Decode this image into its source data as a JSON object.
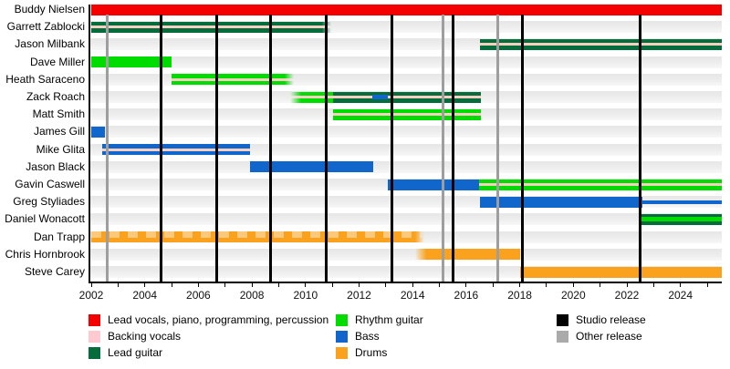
{
  "chart_data": {
    "type": "bar",
    "subtype": "band-membership-timeline",
    "grid": "row-bands",
    "x_axis": {
      "start": 2002,
      "end": 2025.55,
      "minor_tick_step": 1,
      "label_step": 2,
      "labels": [
        "2002",
        "2004",
        "2006",
        "2008",
        "2010",
        "2012",
        "2014",
        "2016",
        "2018",
        "2020",
        "2022",
        "2024"
      ]
    },
    "colors": {
      "lead_vocals": "#f40000",
      "backing_vocals": "#f6cfc0",
      "lead_guitar": "#056d3c",
      "rhythm_guitar": "#00dc00",
      "bass": "#1166cb",
      "drums": "#faa21e",
      "studio": "#000000",
      "other": "#9e9e9e"
    },
    "members": [
      {
        "name": "Buddy Nielsen",
        "segments": [
          {
            "role": "lead_vocals",
            "start": 2002,
            "end": 2025.55
          }
        ]
      },
      {
        "name": "Garrett Zablocki",
        "segments": [
          {
            "role": "lead_guitar",
            "start": 2002,
            "end": 2010.97,
            "stripe": "backing_vocals",
            "fade_right": true
          }
        ]
      },
      {
        "name": "Jason Milbank",
        "segments": [
          {
            "role": "lead_guitar",
            "start": 2016.52,
            "end": 2025.55,
            "stripe": "backing_vocals"
          }
        ]
      },
      {
        "name": "Dave Miller",
        "segments": [
          {
            "role": "rhythm_guitar",
            "start": 2002,
            "end": 2005.0
          }
        ]
      },
      {
        "name": "Heath Saraceno",
        "segments": [
          {
            "role": "rhythm_guitar",
            "start": 2005.0,
            "end": 2009.56,
            "stripe": "backing_vocals",
            "fade_right": true
          }
        ]
      },
      {
        "name": "Zack Roach",
        "segments": [
          {
            "role": "rhythm_guitar",
            "start": 2009.43,
            "end": 2011.03,
            "stripe": "backing_vocals",
            "fade_left": true
          },
          {
            "role": "lead_guitar",
            "start": 2011.03,
            "end": 2016.55,
            "stripe": "backing_vocals",
            "stripe_overlays": [
              {
                "role": "bass",
                "start": 2012.49,
                "end": 2013.07
              }
            ]
          }
        ]
      },
      {
        "name": "Matt Smith",
        "segments": [
          {
            "role": "rhythm_guitar",
            "start": 2011.03,
            "end": 2016.55,
            "stripe": "backing_vocals"
          }
        ]
      },
      {
        "name": "James Gill",
        "segments": [
          {
            "role": "bass",
            "start": 2002,
            "end": 2002.51
          }
        ]
      },
      {
        "name": "Mike Glita",
        "segments": [
          {
            "role": "bass",
            "start": 2002.41,
            "end": 2007.93,
            "stripe": "backing_vocals"
          }
        ]
      },
      {
        "name": "Jason Black",
        "segments": [
          {
            "role": "bass",
            "start": 2007.93,
            "end": 2012.53
          }
        ]
      },
      {
        "name": "Gavin Caswell",
        "segments": [
          {
            "role": "bass",
            "start": 2013.07,
            "end": 2016.48
          },
          {
            "role": "rhythm_guitar",
            "start": 2016.48,
            "end": 2025.55,
            "stripe": "backing_vocals"
          }
        ]
      },
      {
        "name": "Greg Styliades",
        "segments": [
          {
            "role": "bass",
            "start": 2016.52,
            "end": 2022.58
          },
          {
            "role": "bass",
            "start": 2022.58,
            "end": 2025.55,
            "thin": true
          }
        ]
      },
      {
        "name": "Daniel Wonacott",
        "segments": [
          {
            "role": "lead_guitar",
            "start": 2022.51,
            "end": 2025.55,
            "stripe": "rhythm_guitar",
            "stripe_height": 5
          }
        ]
      },
      {
        "name": "Dan Trapp",
        "segments": [
          {
            "role": "drums",
            "start": 2002,
            "end": 2014.44,
            "pattern": "dashed_top",
            "fade_right": true
          }
        ]
      },
      {
        "name": "Chris Hornbrook",
        "segments": [
          {
            "role": "drums",
            "start": 2014.1,
            "end": 2018.01,
            "fade_left": true
          }
        ]
      },
      {
        "name": "Steve Carey",
        "segments": [
          {
            "role": "drums",
            "start": 2018.01,
            "end": 2025.55
          }
        ]
      }
    ],
    "releases": [
      {
        "year": 2002.61,
        "type": "other"
      },
      {
        "year": 2004.62,
        "type": "studio"
      },
      {
        "year": 2006.7,
        "type": "studio"
      },
      {
        "year": 2008.71,
        "type": "studio"
      },
      {
        "year": 2010.79,
        "type": "studio"
      },
      {
        "year": 2013.24,
        "type": "studio"
      },
      {
        "year": 2015.15,
        "type": "other"
      },
      {
        "year": 2015.52,
        "type": "studio"
      },
      {
        "year": 2017.19,
        "type": "other"
      },
      {
        "year": 2018.11,
        "type": "studio"
      },
      {
        "year": 2022.5,
        "type": "studio"
      }
    ],
    "legend": {
      "columns": [
        [
          {
            "label": "Lead vocals, piano, programming, percussion",
            "color": "#f40000"
          },
          {
            "label": "Backing vocals",
            "color": "#ffc9d2"
          },
          {
            "label": "Lead guitar",
            "color": "#056d3c"
          }
        ],
        [
          {
            "label": "Rhythm guitar",
            "color": "#00dc00"
          },
          {
            "label": "Bass",
            "color": "#1166cb"
          },
          {
            "label": "Drums",
            "color": "#faa21e"
          }
        ],
        [
          {
            "label": "Studio release",
            "color": "#000000"
          },
          {
            "label": "Other release",
            "color": "#aaaaaa"
          }
        ]
      ]
    }
  }
}
